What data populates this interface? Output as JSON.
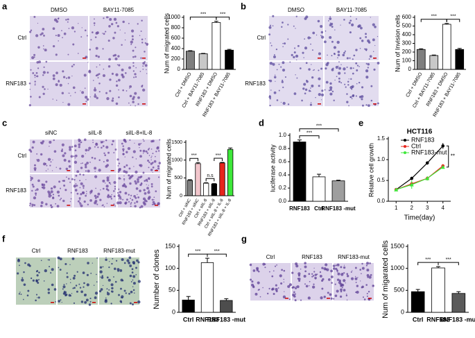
{
  "chart_data": [
    {
      "type": "bar",
      "label": "a",
      "image_labels": {
        "columns": [
          "DMSO",
          "BAY11-7085"
        ],
        "rows": [
          "Ctrl",
          "RNF183"
        ]
      },
      "ylabel": "Num of migrated cells",
      "categories": [
        "Ctrl + DMSO",
        "Ctrl + BAY11-7085",
        "RNF183 + DMSO",
        "RNF183 + BAY11-7085"
      ],
      "values": [
        350,
        300,
        900,
        370
      ],
      "errors": [
        10,
        8,
        25,
        15
      ],
      "colors": [
        "#7f7f7f",
        "#c8c8c8",
        "#ffffff",
        "#000000"
      ],
      "ylim": [
        0,
        1000
      ],
      "yticks": [
        0,
        200,
        400,
        600,
        800,
        1000
      ],
      "annotations": [
        "***",
        "***"
      ]
    },
    {
      "type": "bar",
      "label": "b",
      "image_labels": {
        "columns": [
          "DMSO",
          "BAY11-7085"
        ],
        "rows": [
          "Ctrl",
          "RNF183"
        ]
      },
      "ylabel": "Num of Invision cells",
      "categories": [
        "Ctrl + DMSO",
        "Ctrl + BAY11-7085",
        "RNF183 + DMSO",
        "RNF183 + BAY11-7085"
      ],
      "values": [
        230,
        160,
        520,
        230
      ],
      "errors": [
        8,
        6,
        10,
        12
      ],
      "colors": [
        "#7f7f7f",
        "#c8c8c8",
        "#ffffff",
        "#000000"
      ],
      "ylim": [
        0,
        600
      ],
      "yticks": [
        0,
        100,
        200,
        300,
        400,
        500,
        600
      ],
      "annotations": [
        "***",
        "***"
      ]
    },
    {
      "type": "bar",
      "label": "c",
      "image_labels": {
        "columns": [
          "siNC",
          "siIL-8",
          "siIL-8+IL-8"
        ],
        "rows": [
          "Ctrl",
          "RNF183"
        ]
      },
      "ylabel": "Num of migrated cells",
      "categories": [
        "Ctrl + siNC",
        "RNF183 + siNC",
        "Ctrl + siIL-8",
        "RNF183 + siIL-8",
        "Ctrl + siIL-8 + IL-8",
        "RNF183 + siIL-8 + IL-8"
      ],
      "values": [
        430,
        900,
        350,
        330,
        920,
        1300
      ],
      "errors": [
        20,
        30,
        15,
        10,
        15,
        40
      ],
      "colors": [
        "#7f7f7f",
        "#f2c6cc",
        "#ffffff",
        "#000000",
        "#e8241c",
        "#3ee83a"
      ],
      "ylim": [
        0,
        1500
      ],
      "yticks": [
        0,
        500,
        1000,
        1500
      ],
      "annotations": [
        "***",
        "n.s",
        "***"
      ]
    },
    {
      "type": "bar",
      "label": "d",
      "ylabel": "luciferase activity",
      "categories": [
        "RNF183",
        "Ctrl",
        "RNF183 -mut"
      ],
      "values": [
        0.9,
        0.37,
        0.31
      ],
      "errors": [
        0.03,
        0.04,
        0.01
      ],
      "colors": [
        "#000000",
        "#ffffff",
        "#9e9e9e"
      ],
      "ylim": [
        0,
        1.0
      ],
      "yticks": [
        {
          "value": 0,
          "label": "0.0"
        },
        0.2,
        0.4,
        0.6,
        0.8,
        {
          "value": 1,
          "label": "1.0"
        }
      ],
      "annotations": [
        "***",
        "***"
      ]
    },
    {
      "type": "line",
      "label": "e",
      "title": "HCT116",
      "xlabel": "Time(day)",
      "ylabel": "Relative cell growth",
      "x": [
        1,
        2,
        3,
        4
      ],
      "xlim": [
        0.5,
        4.5
      ],
      "xticks": [
        1,
        2,
        3,
        4
      ],
      "ylim": [
        0,
        1.5
      ],
      "yticks": [
        {
          "value": 0,
          "label": "0.0"
        },
        0.5,
        {
          "value": 1,
          "label": "1.0"
        },
        1.5
      ],
      "series": [
        {
          "name": "RNF183",
          "color": "#000000",
          "values": [
            0.28,
            0.55,
            0.92,
            1.33
          ],
          "errors": [
            0.03,
            0.04,
            0.04,
            0.07
          ]
        },
        {
          "name": "Ctrl",
          "color": "#e8241c",
          "values": [
            0.28,
            0.42,
            0.55,
            0.85
          ],
          "errors": [
            0.03,
            0.05,
            0.05,
            0.04
          ]
        },
        {
          "name": "RNF183-mut",
          "color": "#3ee83a",
          "values": [
            0.28,
            0.4,
            0.55,
            0.82
          ],
          "errors": [
            0.03,
            0.1,
            0.05,
            0.04
          ]
        }
      ],
      "annotations": [
        "**"
      ]
    },
    {
      "type": "bar",
      "label": "f",
      "image_labels": {
        "columns": [
          "Ctrl",
          "RNF183",
          "RNF183-mut"
        ]
      },
      "ylabel": "Number of clones",
      "categories": [
        "Ctrl",
        "RNF183",
        "RNF183 -mut"
      ],
      "values": [
        28,
        113,
        27
      ],
      "errors": [
        8,
        10,
        4
      ],
      "colors": [
        "#000000",
        "#ffffff",
        "#4d4d4d"
      ],
      "ylim": [
        0,
        150
      ],
      "yticks": [
        0,
        50,
        100,
        150
      ],
      "annotations": [
        "***",
        "***"
      ]
    },
    {
      "type": "bar",
      "label": "g",
      "image_labels": {
        "columns": [
          "Ctrl",
          "RNF183",
          "RNF183-mut"
        ]
      },
      "ylabel": "Num of migarated cells",
      "categories": [
        "Ctrl",
        "RNF183",
        "RNF183 -mut"
      ],
      "values": [
        470,
        1010,
        430
      ],
      "errors": [
        50,
        30,
        40
      ],
      "colors": [
        "#000000",
        "#ffffff",
        "#5a5a5a"
      ],
      "ylim": [
        0,
        1500
      ],
      "yticks": [
        0,
        500,
        1000,
        1500
      ],
      "annotations": [
        "***",
        "***"
      ]
    }
  ]
}
